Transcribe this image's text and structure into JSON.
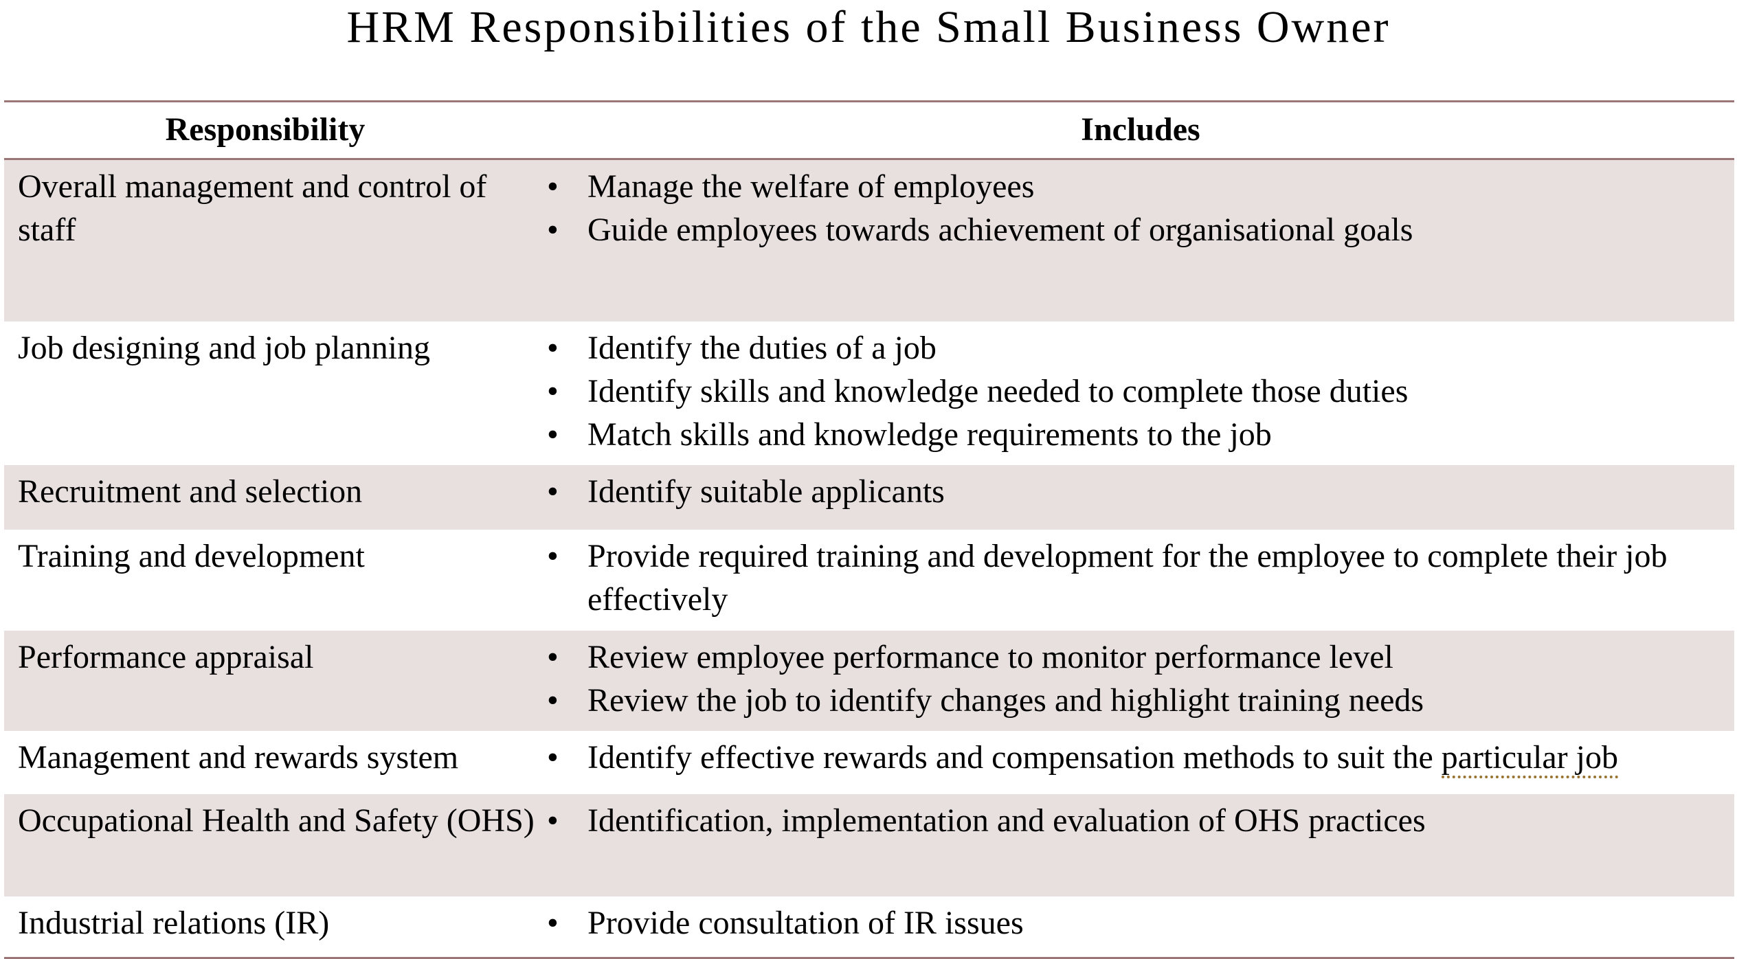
{
  "title": "HRM Responsibilities of the Small Business Owner",
  "headers": {
    "responsibility": "Responsibility",
    "includes": "Includes"
  },
  "colors": {
    "row_shade": "#e8e0df",
    "rule": "#9c7676",
    "spellcheck_underline": "#9a7330"
  },
  "rows": [
    {
      "responsibility": "Overall management and control of staff",
      "includes": [
        "Manage the welfare of employees",
        "Guide employees towards achievement of organisational goals"
      ]
    },
    {
      "responsibility": "Job designing and job planning",
      "includes": [
        "Identify the duties of a job",
        "Identify skills and knowledge needed to complete those duties",
        "Match skills and knowledge requirements to the job"
      ]
    },
    {
      "responsibility": "Recruitment and selection",
      "includes": [
        "Identify suitable applicants"
      ]
    },
    {
      "responsibility": "Training and development",
      "includes": [
        "Provide required training and development for the employee to complete their job effectively"
      ]
    },
    {
      "responsibility": "Performance appraisal",
      "includes": [
        "Review employee performance to monitor performance level",
        "Review the job to identify changes and highlight training needs"
      ]
    },
    {
      "responsibility": "Management and rewards system",
      "includes": [
        "Identify effective rewards and compensation methods to suit the "
      ],
      "flagged_phrase": "particular job"
    },
    {
      "responsibility": "Occupational Health and Safety (OHS)",
      "includes": [
        "Identification, implementation and evaluation of OHS practices"
      ]
    },
    {
      "responsibility": "Industrial relations (IR)",
      "includes": [
        "Provide consultation of IR issues"
      ]
    }
  ],
  "bullet": "•"
}
